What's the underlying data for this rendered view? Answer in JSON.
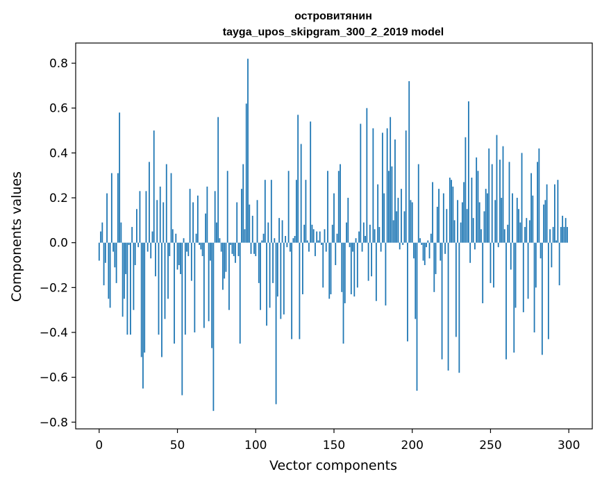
{
  "chart_data": {
    "type": "bar",
    "title": "островитянин",
    "subtitle": "tayga_upos_skipgram_300_2_2019 model",
    "xlabel": "Vector components",
    "ylabel": "Components values",
    "xlim": [
      -15,
      315
    ],
    "ylim": [
      -0.83,
      0.89
    ],
    "xticks": [
      0,
      50,
      100,
      150,
      200,
      250,
      300
    ],
    "yticks": [
      -0.8,
      -0.6,
      -0.4,
      -0.2,
      0.0,
      0.2,
      0.4,
      0.6,
      0.8
    ],
    "ytick_labels": [
      "−0.8",
      "−0.6",
      "−0.4",
      "−0.2",
      "0.0",
      "0.2",
      "0.4",
      "0.6",
      "0.8"
    ],
    "bar_color": "#1f77b4",
    "values": [
      -0.08,
      0.05,
      0.09,
      -0.19,
      -0.09,
      0.22,
      -0.25,
      -0.29,
      0.31,
      -0.04,
      -0.11,
      -0.18,
      0.31,
      0.58,
      0.09,
      -0.33,
      -0.25,
      -0.14,
      -0.41,
      -0.01,
      -0.41,
      0.07,
      -0.3,
      -0.1,
      0.15,
      -0.02,
      0.23,
      -0.51,
      -0.65,
      -0.49,
      0.23,
      -0.04,
      0.36,
      -0.07,
      0.05,
      0.5,
      -0.15,
      0.19,
      -0.41,
      0.25,
      -0.51,
      0.18,
      -0.34,
      0.35,
      -0.25,
      -0.06,
      0.31,
      0.06,
      -0.45,
      0.04,
      -0.12,
      -0.1,
      -0.14,
      -0.68,
      0.02,
      -0.41,
      -0.04,
      -0.06,
      0.24,
      -0.17,
      0.18,
      -0.4,
      0.04,
      0.21,
      -0.01,
      -0.03,
      -0.06,
      -0.38,
      0.13,
      0.25,
      -0.35,
      -0.08,
      -0.47,
      -0.75,
      0.23,
      0.09,
      0.56,
      0.02,
      -0.04,
      -0.21,
      -0.16,
      -0.13,
      0.32,
      -0.3,
      -0.01,
      -0.05,
      -0.06,
      -0.09,
      0.18,
      -0.06,
      -0.45,
      0.24,
      0.35,
      0.06,
      0.62,
      0.82,
      0.17,
      -0.05,
      0.12,
      -0.05,
      -0.06,
      0.19,
      -0.18,
      -0.3,
      0.01,
      0.04,
      0.28,
      -0.37,
      0.09,
      -0.29,
      0.28,
      -0.18,
      0.02,
      -0.72,
      -0.24,
      0.11,
      -0.34,
      0.1,
      -0.32,
      0.03,
      -0.02,
      0.32,
      -0.04,
      -0.43,
      0.02,
      0.03,
      0.28,
      0.57,
      -0.43,
      0.44,
      -0.23,
      0.08,
      0.28,
      0.01,
      -0.04,
      0.54,
      0.08,
      0.06,
      -0.06,
      0.05,
      0.01,
      0.05,
      -0.01,
      -0.2,
      0.06,
      -0.04,
      0.32,
      -0.25,
      -0.23,
      0.08,
      0.22,
      -0.1,
      0.04,
      0.32,
      0.35,
      -0.22,
      -0.45,
      -0.27,
      0.09,
      0.2,
      -0.02,
      -0.23,
      -0.04,
      -0.24,
      0.02,
      -0.2,
      0.05,
      0.53,
      -0.04,
      0.09,
      0.03,
      0.6,
      -0.17,
      0.08,
      -0.15,
      0.51,
      0.06,
      -0.26,
      0.26,
      0.07,
      -0.04,
      0.49,
      0.22,
      -0.28,
      0.51,
      0.32,
      0.56,
      0.34,
      0.1,
      0.46,
      0.14,
      0.2,
      -0.03,
      0.24,
      -0.01,
      0.14,
      0.5,
      -0.44,
      0.72,
      0.19,
      0.18,
      -0.07,
      -0.34,
      -0.66,
      0.35,
      0.02,
      -0.01,
      -0.08,
      -0.1,
      -0.02,
      0.01,
      -0.07,
      0.04,
      0.27,
      -0.22,
      -0.14,
      0.16,
      0.24,
      -0.08,
      -0.52,
      0.22,
      -0.05,
      0.15,
      -0.57,
      0.29,
      0.28,
      0.25,
      0.1,
      -0.42,
      0.19,
      -0.58,
      0.09,
      0.18,
      0.27,
      0.47,
      0.15,
      0.63,
      -0.09,
      0.29,
      0.11,
      -0.03,
      0.38,
      0.32,
      0.18,
      0.06,
      -0.27,
      0.14,
      0.24,
      0.22,
      0.42,
      -0.18,
      0.35,
      -0.2,
      0.19,
      0.48,
      -0.02,
      0.37,
      0.2,
      0.43,
      0.06,
      -0.52,
      0.08,
      0.36,
      -0.12,
      0.22,
      -0.49,
      -0.29,
      0.2,
      0.15,
      0.09,
      0.4,
      -0.31,
      0.07,
      0.11,
      -0.25,
      0.1,
      0.31,
      0.21,
      -0.4,
      -0.2,
      0.36,
      0.42,
      -0.07,
      -0.5,
      0.17,
      0.19,
      0.26,
      -0.43,
      0.06,
      -0.11,
      0.07,
      0.26,
      0.01,
      0.28,
      -0.19,
      0.07,
      0.12,
      0.07,
      0.11,
      0.07
    ]
  }
}
